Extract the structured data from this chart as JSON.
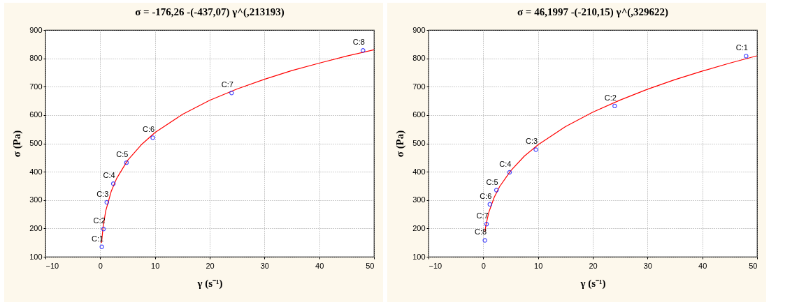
{
  "chart_data": [
    {
      "type": "scatter",
      "title": "σ = -176,26 -(-437,07) γ^(,213193)",
      "xlabel": "γ (s⁻¹)",
      "ylabel": "σ (Pa)",
      "xlim": [
        -10,
        50
      ],
      "xticks": [
        -10,
        0,
        10,
        20,
        30,
        40,
        50
      ],
      "ylim": [
        100,
        900
      ],
      "yticks": [
        100,
        200,
        300,
        400,
        500,
        600,
        700,
        800,
        900
      ],
      "grid": true,
      "series": [
        {
          "type": "line",
          "color": "#ff0000",
          "x": [
            0.25,
            0.5,
            1,
            2,
            3,
            5,
            7.5,
            10,
            15,
            20,
            25,
            30,
            35,
            40,
            45,
            50
          ],
          "values": [
            149,
            201,
            261,
            330,
            376,
            440,
            495,
            538,
            602,
            652,
            692,
            726,
            757,
            783,
            808,
            830
          ]
        },
        {
          "color": "#0000ff",
          "marker": "circle",
          "x": [
            0.3,
            0.6,
            1.2,
            2.4,
            4.8,
            9.6,
            24,
            48
          ],
          "values": [
            135,
            198,
            292,
            358,
            432,
            520,
            678,
            828
          ]
        }
      ],
      "annotations": [
        {
          "text": "C:1",
          "x": 0.3,
          "y": 135
        },
        {
          "text": "C:2",
          "x": 0.6,
          "y": 198
        },
        {
          "text": "C:3",
          "x": 1.2,
          "y": 292
        },
        {
          "text": "C:4",
          "x": 2.4,
          "y": 358
        },
        {
          "text": "C:5",
          "x": 4.8,
          "y": 432
        },
        {
          "text": "C:6",
          "x": 9.6,
          "y": 520
        },
        {
          "text": "C:7",
          "x": 24,
          "y": 678
        },
        {
          "text": "C:8",
          "x": 48,
          "y": 828
        }
      ]
    },
    {
      "type": "scatter",
      "title": "σ = 46,1997 -(-210,15) γ^(,329622)",
      "xlabel": "γ (s⁻¹)",
      "ylabel": "σ (Pa)",
      "xlim": [
        -10,
        50
      ],
      "xticks": [
        -10,
        0,
        10,
        20,
        30,
        40,
        50
      ],
      "ylim": [
        100,
        900
      ],
      "yticks": [
        100,
        200,
        300,
        400,
        500,
        600,
        700,
        800,
        900
      ],
      "grid": true,
      "series": [
        {
          "type": "line",
          "color": "#ff0000",
          "x": [
            0.3,
            0.5,
            1,
            2,
            3,
            5,
            7.5,
            10,
            15,
            20,
            25,
            30,
            35,
            40,
            45,
            50
          ],
          "values": [
            188,
            213,
            256,
            310,
            348,
            403,
            455,
            495,
            559,
            610,
            653,
            691,
            725,
            755,
            783,
            809
          ]
        },
        {
          "color": "#0000ff",
          "marker": "circle",
          "x": [
            48,
            24,
            9.6,
            4.8,
            2.4,
            1.2,
            0.6,
            0.3
          ],
          "values": [
            808,
            632,
            478,
            398,
            335,
            285,
            215,
            158
          ]
        }
      ],
      "annotations": [
        {
          "text": "C:1",
          "x": 48,
          "y": 808
        },
        {
          "text": "C:2",
          "x": 24,
          "y": 632
        },
        {
          "text": "C:3",
          "x": 9.6,
          "y": 478
        },
        {
          "text": "C:4",
          "x": 4.8,
          "y": 398
        },
        {
          "text": "C:5",
          "x": 2.4,
          "y": 335
        },
        {
          "text": "C:6",
          "x": 1.2,
          "y": 285
        },
        {
          "text": "C:7",
          "x": 0.6,
          "y": 215
        },
        {
          "text": "C:8",
          "x": 0.3,
          "y": 158
        }
      ]
    }
  ]
}
